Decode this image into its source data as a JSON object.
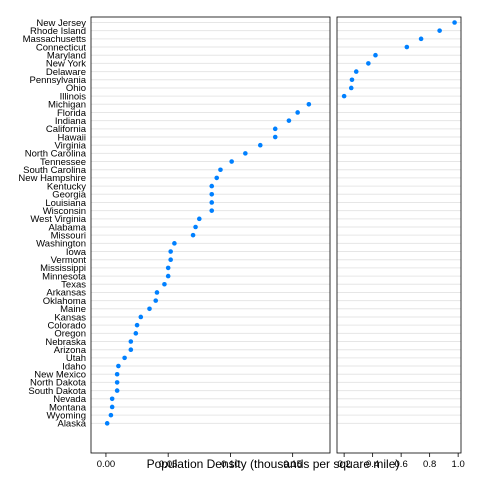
{
  "chart_data": {
    "type": "scatter",
    "xlabel": "Population Density (thousands per square mile)",
    "point_color": "#0080ff",
    "panels": [
      {
        "xlim": [
          -0.012,
          0.18
        ],
        "ticks": [
          0.0,
          0.05,
          0.1,
          0.15
        ],
        "tick_labels": [
          "0.00",
          "0.05",
          "0.10",
          "0.15"
        ]
      },
      {
        "xlim": [
          0.15,
          1.02
        ],
        "ticks": [
          0.2,
          0.4,
          0.6,
          0.8,
          1.0
        ],
        "tick_labels": [
          "0.2",
          "0.4",
          "0.6",
          "0.8",
          "1.0"
        ]
      }
    ],
    "points": [
      {
        "state": "New Jersey",
        "value": 0.975,
        "panel": 1
      },
      {
        "state": "Rhode Island",
        "value": 0.87,
        "panel": 1
      },
      {
        "state": "Massachusetts",
        "value": 0.74,
        "panel": 1
      },
      {
        "state": "Connecticut",
        "value": 0.64,
        "panel": 1
      },
      {
        "state": "Maryland",
        "value": 0.42,
        "panel": 1
      },
      {
        "state": "New York",
        "value": 0.37,
        "panel": 1
      },
      {
        "state": "Delaware",
        "value": 0.285,
        "panel": 1
      },
      {
        "state": "Pennsylvania",
        "value": 0.255,
        "panel": 1
      },
      {
        "state": "Ohio",
        "value": 0.25,
        "panel": 1
      },
      {
        "state": "Illinois",
        "value": 0.2,
        "panel": 1
      },
      {
        "state": "Michigan",
        "value": 0.163,
        "panel": 0
      },
      {
        "state": "Florida",
        "value": 0.154,
        "panel": 0
      },
      {
        "state": "Indiana",
        "value": 0.147,
        "panel": 0
      },
      {
        "state": "California",
        "value": 0.136,
        "panel": 0
      },
      {
        "state": "Hawaii",
        "value": 0.136,
        "panel": 0
      },
      {
        "state": "Virginia",
        "value": 0.124,
        "panel": 0
      },
      {
        "state": "North Carolina",
        "value": 0.112,
        "panel": 0
      },
      {
        "state": "Tennessee",
        "value": 0.101,
        "panel": 0
      },
      {
        "state": "South Carolina",
        "value": 0.092,
        "panel": 0
      },
      {
        "state": "New Hampshire",
        "value": 0.089,
        "panel": 0
      },
      {
        "state": "Kentucky",
        "value": 0.085,
        "panel": 0
      },
      {
        "state": "Georgia",
        "value": 0.085,
        "panel": 0
      },
      {
        "state": "Louisiana",
        "value": 0.085,
        "panel": 0
      },
      {
        "state": "Wisconsin",
        "value": 0.085,
        "panel": 0
      },
      {
        "state": "West Virginia",
        "value": 0.075,
        "panel": 0
      },
      {
        "state": "Alabama",
        "value": 0.072,
        "panel": 0
      },
      {
        "state": "Missouri",
        "value": 0.07,
        "panel": 0
      },
      {
        "state": "Washington",
        "value": 0.055,
        "panel": 0
      },
      {
        "state": "Iowa",
        "value": 0.052,
        "panel": 0
      },
      {
        "state": "Vermont",
        "value": 0.052,
        "panel": 0
      },
      {
        "state": "Mississippi",
        "value": 0.05,
        "panel": 0
      },
      {
        "state": "Minnesota",
        "value": 0.05,
        "panel": 0
      },
      {
        "state": "Texas",
        "value": 0.047,
        "panel": 0
      },
      {
        "state": "Arkansas",
        "value": 0.041,
        "panel": 0
      },
      {
        "state": "Oklahoma",
        "value": 0.04,
        "panel": 0
      },
      {
        "state": "Maine",
        "value": 0.035,
        "panel": 0
      },
      {
        "state": "Kansas",
        "value": 0.028,
        "panel": 0
      },
      {
        "state": "Colorado",
        "value": 0.025,
        "panel": 0
      },
      {
        "state": "Oregon",
        "value": 0.024,
        "panel": 0
      },
      {
        "state": "Nebraska",
        "value": 0.02,
        "panel": 0
      },
      {
        "state": "Arizona",
        "value": 0.02,
        "panel": 0
      },
      {
        "state": "Utah",
        "value": 0.015,
        "panel": 0
      },
      {
        "state": "Idaho",
        "value": 0.01,
        "panel": 0
      },
      {
        "state": "New Mexico",
        "value": 0.009,
        "panel": 0
      },
      {
        "state": "North Dakota",
        "value": 0.009,
        "panel": 0
      },
      {
        "state": "South Dakota",
        "value": 0.009,
        "panel": 0
      },
      {
        "state": "Nevada",
        "value": 0.005,
        "panel": 0
      },
      {
        "state": "Montana",
        "value": 0.005,
        "panel": 0
      },
      {
        "state": "Wyoming",
        "value": 0.004,
        "panel": 0
      },
      {
        "state": "Alaska",
        "value": 0.001,
        "panel": 0
      }
    ]
  }
}
